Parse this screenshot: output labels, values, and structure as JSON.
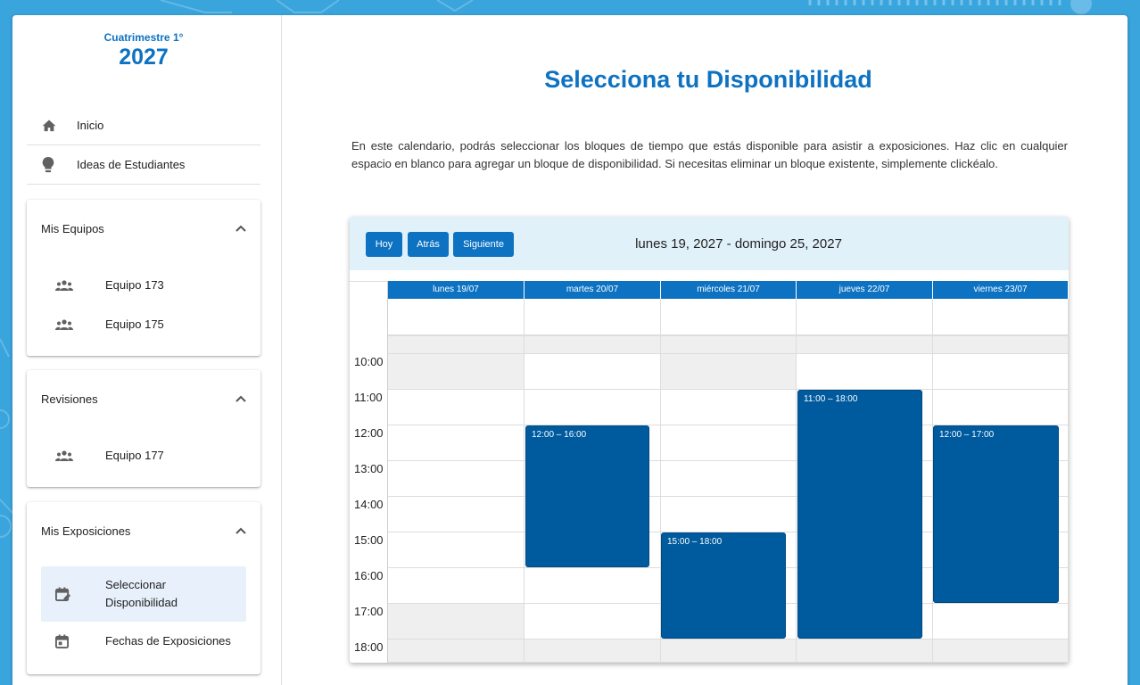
{
  "sidebar": {
    "term_label": "Cuatrimestre 1°",
    "year": "2027",
    "nav": [
      {
        "label": "Inicio",
        "icon": "home-icon"
      },
      {
        "label": "Ideas de Estudiantes",
        "icon": "lightbulb-icon"
      }
    ],
    "panels": {
      "equipos": {
        "title": "Mis Equipos",
        "items": [
          {
            "label": "Equipo 173",
            "icon": "group-icon"
          },
          {
            "label": "Equipo 175",
            "icon": "group-icon"
          }
        ]
      },
      "revisiones": {
        "title": "Revisiones",
        "items": [
          {
            "label": "Equipo 177",
            "icon": "group-icon"
          }
        ]
      },
      "exposiciones": {
        "title": "Mis Exposiciones",
        "items": [
          {
            "label": "Seleccionar Disponibilidad",
            "icon": "calendar-edit-icon",
            "active": true
          },
          {
            "label": "Fechas de Exposiciones",
            "icon": "calendar-icon"
          }
        ]
      }
    }
  },
  "main": {
    "title": "Selecciona tu Disponibilidad",
    "intro": "En este calendario, podrás seleccionar los bloques de tiempo que estás disponible para asistir a exposiciones. Haz clic en cualquier espacio en blanco para agregar un bloque de disponibilidad. Si necesitas eliminar un bloque existente, simplemente clickéalo."
  },
  "calendar": {
    "buttons": {
      "today": "Hoy",
      "back": "Atrás",
      "next": "Siguiente"
    },
    "range": "lunes 19, 2027 - domingo 25, 2027",
    "days": [
      "lunes 19/07",
      "martes 20/07",
      "miércoles 21/07",
      "jueves 22/07",
      "viernes 23/07"
    ],
    "times": [
      "10:00",
      "11:00",
      "12:00",
      "13:00",
      "14:00",
      "15:00",
      "16:00",
      "17:00",
      "18:00"
    ],
    "events": [
      {
        "day": 1,
        "label": "12:00 – 16:00"
      },
      {
        "day": 2,
        "label": "15:00 – 18:00"
      },
      {
        "day": 3,
        "label": "11:00 – 18:00"
      },
      {
        "day": 4,
        "label": "12:00 – 17:00"
      }
    ],
    "colors": {
      "accent": "#0d72c2",
      "event": "#005a9e",
      "header_bg": "#e1f1fa"
    }
  }
}
